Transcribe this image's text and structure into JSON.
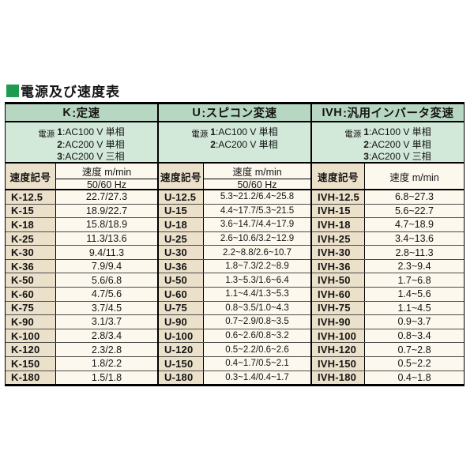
{
  "title": "電源及び速度表",
  "colors": {
    "title_bullet": "#1e9b50",
    "band_green": "#b7d7c2",
    "power_green": "#d2e8d9",
    "code_column_bg": "#ebe0ca",
    "value_column_bg": "#fcf8ee",
    "border": "#000000",
    "row_line": "#4c4c4c"
  },
  "table": {
    "sections": [
      {
        "key": "K",
        "header_prefix": "K",
        "header_rest": ":定速",
        "power_label": "電源",
        "power_lines": [
          {
            "num": "1",
            "rest": ":AC100 V 単相"
          },
          {
            "num": "2",
            "rest": ":AC200 V 単相"
          },
          {
            "num": "3",
            "rest": ":AC200 V 三相"
          }
        ],
        "symbol_header": "速度記号",
        "speed_header": "速度 m/min",
        "speed_subheader": "50/60 Hz",
        "rows": [
          {
            "symbol": "K-12.5",
            "speed": "22.7/27.3"
          },
          {
            "symbol": "K-15",
            "speed": "18.9/22.7"
          },
          {
            "symbol": "K-18",
            "speed": "15.8/18.9"
          },
          {
            "symbol": "K-25",
            "speed": "11.3/13.6"
          },
          {
            "symbol": "K-30",
            "speed": "9.4/11.3"
          },
          {
            "symbol": "K-36",
            "speed": "7.9/9.4"
          },
          {
            "symbol": "K-50",
            "speed": "5.6/6.8"
          },
          {
            "symbol": "K-60",
            "speed": "4.7/5.6"
          },
          {
            "symbol": "K-75",
            "speed": "3.7/4.5"
          },
          {
            "symbol": "K-90",
            "speed": "3.1/3.7"
          },
          {
            "symbol": "K-100",
            "speed": "2.8/3.4"
          },
          {
            "symbol": "K-120",
            "speed": "2.3/2.8"
          },
          {
            "symbol": "K-150",
            "speed": "1.8/2.2"
          },
          {
            "symbol": "K-180",
            "speed": "1.5/1.8"
          }
        ]
      },
      {
        "key": "U",
        "header_prefix": "U",
        "header_rest": ":スピコン変速",
        "power_label": "電源",
        "power_lines": [
          {
            "num": "1",
            "rest": ":AC100 V 単相"
          },
          {
            "num": "2",
            "rest": ":AC200 V 単相"
          }
        ],
        "symbol_header": "速度記号",
        "speed_header": "速度 m/min",
        "speed_subheader": "50/60 Hz",
        "rows": [
          {
            "symbol": "U-12.5",
            "speed": "5.3~21.2/6.4~25.8"
          },
          {
            "symbol": "U-15",
            "speed": "4.4~17.7/5.3~21.5"
          },
          {
            "symbol": "U-18",
            "speed": "3.6~14.7/4.4~17.9"
          },
          {
            "symbol": "U-25",
            "speed": "2.6~10.6/3.2~12.9"
          },
          {
            "symbol": "U-30",
            "speed": "2.2~8.8/2.6~10.7"
          },
          {
            "symbol": "U-36",
            "speed": "1.8~7.3/2.2~8.9"
          },
          {
            "symbol": "U-50",
            "speed": "1.3~5.3/1.6~6.4"
          },
          {
            "symbol": "U-60",
            "speed": "1.1~4.4/1.3~5.3"
          },
          {
            "symbol": "U-75",
            "speed": "0.8~3.5/1.0~4.3"
          },
          {
            "symbol": "U-90",
            "speed": "0.7~2.9/0.8~3.5"
          },
          {
            "symbol": "U-100",
            "speed": "0.6~2.6/0.8~3.2"
          },
          {
            "symbol": "U-120",
            "speed": "0.5~2.2/0.6~2.6"
          },
          {
            "symbol": "U-150",
            "speed": "0.4~1.7/0.5~2.1"
          },
          {
            "symbol": "U-180",
            "speed": "0.3~1.4/0.4~1.7"
          }
        ]
      },
      {
        "key": "IVH",
        "header_prefix": "IVH",
        "header_rest": ":汎用インバータ変速",
        "power_label": "電源",
        "power_lines": [
          {
            "num": "1",
            "rest": ":AC100 V 単相"
          },
          {
            "num": "2",
            "rest": ":AC200 V 単相"
          },
          {
            "num": "3",
            "rest": ":AC200 V 三相"
          }
        ],
        "symbol_header": "速度記号",
        "speed_header": "速度 m/min",
        "rows": [
          {
            "symbol": "IVH-12.5",
            "speed": "6.8~27.3"
          },
          {
            "symbol": "IVH-15",
            "speed": "5.6~22.7"
          },
          {
            "symbol": "IVH-18",
            "speed": "4.7~18.9"
          },
          {
            "symbol": "IVH-25",
            "speed": "3.4~13.6"
          },
          {
            "symbol": "IVH-30",
            "speed": "2.8~11.3"
          },
          {
            "symbol": "IVH-36",
            "speed": "2.3~9.4"
          },
          {
            "symbol": "IVH-50",
            "speed": "1.7~6.8"
          },
          {
            "symbol": "IVH-60",
            "speed": "1.4~5.6"
          },
          {
            "symbol": "IVH-75",
            "speed": "1.1~4.5"
          },
          {
            "symbol": "IVH-90",
            "speed": "0.9~3.7"
          },
          {
            "symbol": "IVH-100",
            "speed": "0.8~3.4"
          },
          {
            "symbol": "IVH-120",
            "speed": "0.7~2.8"
          },
          {
            "symbol": "IVH-150",
            "speed": "0.5~2.2"
          },
          {
            "symbol": "IVH-180",
            "speed": "0.4~1.8"
          }
        ]
      }
    ]
  }
}
